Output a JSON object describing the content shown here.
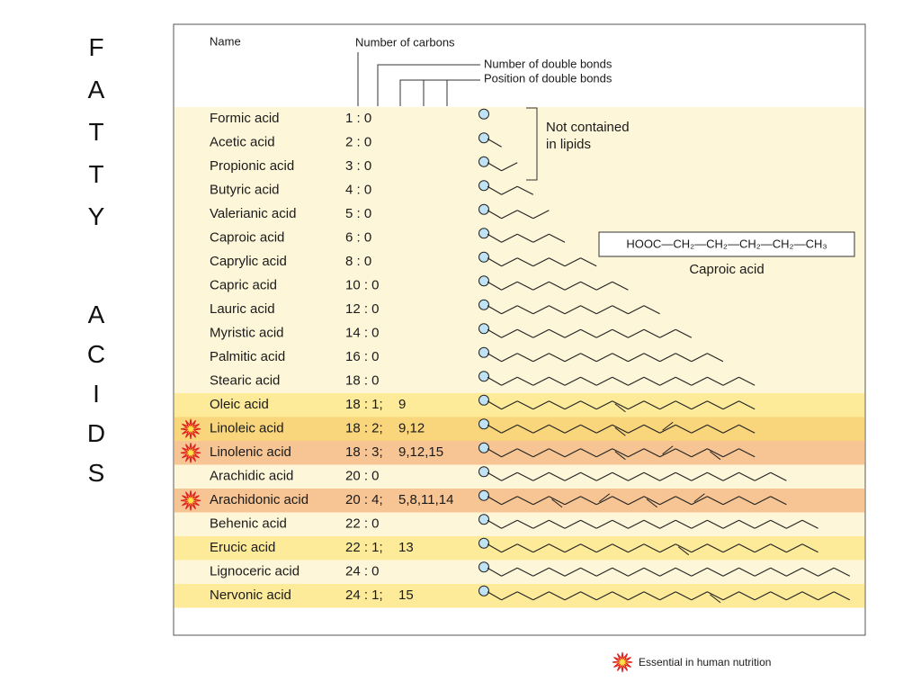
{
  "side_title": [
    "FATTY",
    "ACIDS"
  ],
  "header": {
    "name": "Name",
    "carbons": "Number of carbons",
    "double_bonds": "Number of double bonds",
    "positions": "Position of double bonds"
  },
  "rows": [
    {
      "name": "Formic acid",
      "ratio": "1 : 0",
      "color": "#fdf6d8"
    },
    {
      "name": "Acetic acid",
      "ratio": "2 : 0",
      "color": "#fdf6d8"
    },
    {
      "name": "Propionic acid",
      "ratio": "3 : 0",
      "color": "#fdf6d8"
    },
    {
      "name": "Butyric acid",
      "ratio": "4 : 0",
      "color": "#fdf6d8"
    },
    {
      "name": "Valerianic acid",
      "ratio": "5 : 0",
      "color": "#fdf6d8"
    },
    {
      "name": "Caproic acid",
      "ratio": "6 : 0",
      "color": "#fdf6d8"
    },
    {
      "name": "Caprylic acid",
      "ratio": "8 : 0",
      "color": "#fdf6d8"
    },
    {
      "name": "Capric acid",
      "ratio": "10 : 0",
      "color": "#fdf6d8"
    },
    {
      "name": "Lauric acid",
      "ratio": "12 : 0",
      "color": "#fdf6d8"
    },
    {
      "name": "Myristic acid",
      "ratio": "14 : 0",
      "color": "#fdf6d8"
    },
    {
      "name": "Palmitic acid",
      "ratio": "16 : 0",
      "color": "#fdf6d8"
    },
    {
      "name": "Stearic acid",
      "ratio": "18 : 0",
      "color": "#fdf6d8"
    },
    {
      "name": "Oleic acid",
      "ratio": "18 : 1;",
      "positions": "9",
      "color": "#fdeb9a"
    },
    {
      "name": "Linoleic acid",
      "ratio": "18 : 2;",
      "positions": "9,12",
      "color": "#f9d57b",
      "essential": true
    },
    {
      "name": "Linolenic acid",
      "ratio": "18 : 3;",
      "positions": "9,12,15",
      "color": "#f7c594",
      "essential": true
    },
    {
      "name": "Arachidic acid",
      "ratio": "20 : 0",
      "color": "#fdf6d8"
    },
    {
      "name": "Arachidonic acid",
      "ratio": "20 : 4;",
      "positions": "5,8,11,14",
      "color": "#f7c594",
      "essential": true
    },
    {
      "name": "Behenic acid",
      "ratio": "22 : 0",
      "color": "#fdf6d8"
    },
    {
      "name": "Erucic acid",
      "ratio": "22 : 1;",
      "positions": "13",
      "color": "#fdeb9a"
    },
    {
      "name": "Lignoceric acid",
      "ratio": "24 : 0",
      "color": "#fdf6d8"
    },
    {
      "name": "Nervonic acid",
      "ratio": "24 : 1;",
      "positions": "15",
      "color": "#fdeb9a"
    }
  ],
  "note": [
    "Not contained",
    "in lipids"
  ],
  "formula": "HOOC—CH₂—CH₂—CH₂—CH₂—CH₃",
  "formula_label": "Caproic acid",
  "legend": "Essential in human nutrition"
}
